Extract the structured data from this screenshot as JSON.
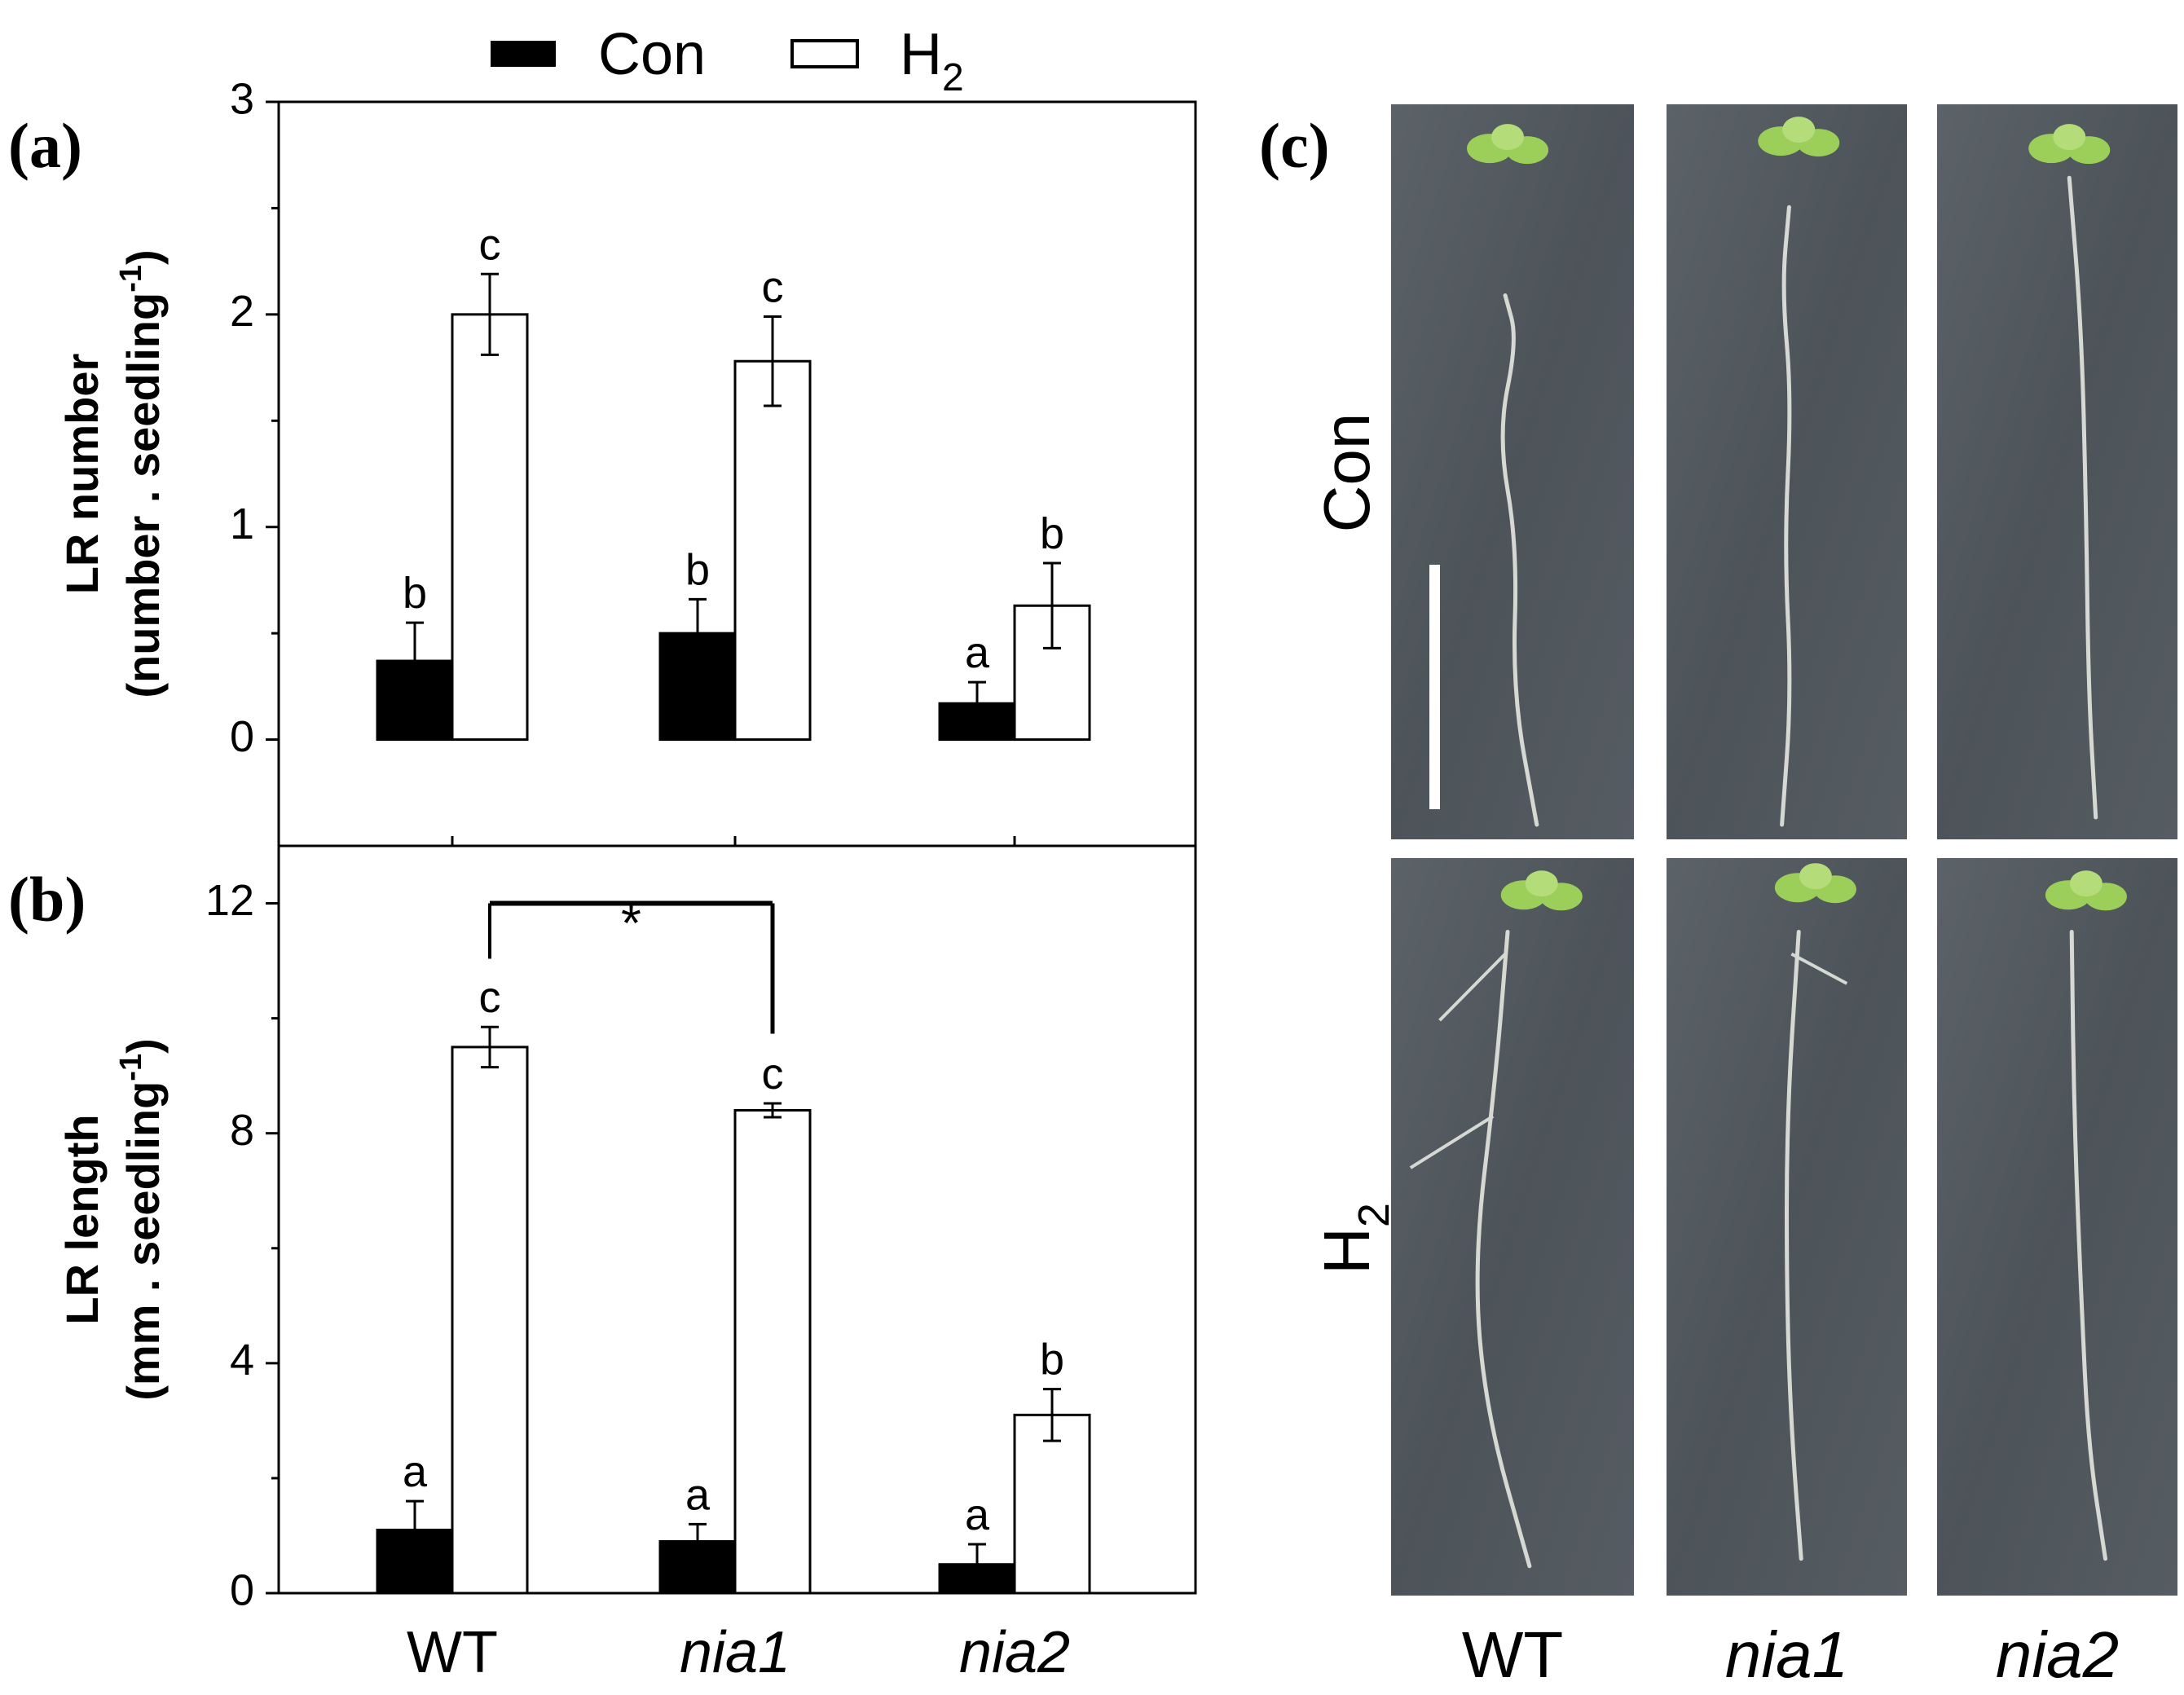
{
  "legend": {
    "entries": [
      {
        "label": "Con",
        "fill": "#000000"
      },
      {
        "label": "H",
        "sub": "2",
        "fill": "#ffffff"
      }
    ]
  },
  "panels": {
    "a": "(a)",
    "b": "(b)",
    "c": "(c)"
  },
  "chart_data": [
    {
      "panel": "a",
      "type": "bar",
      "categories": [
        "WT",
        "nia1",
        "nia2"
      ],
      "italic_categories": [
        "nia1",
        "nia2"
      ],
      "ylabel_line1": "LR number",
      "ylabel_line2": "(number . seedling",
      "ylabel_sup": "-1",
      "ylabel_close": ")",
      "ylim": [
        -0.5,
        3
      ],
      "yticks": [
        0,
        1,
        2,
        3
      ],
      "series": [
        {
          "name": "Con",
          "fill": "#000000",
          "values": [
            0.37,
            0.5,
            0.17
          ],
          "errors": [
            0.18,
            0.16,
            0.1
          ],
          "letters": [
            "b",
            "b",
            "a"
          ]
        },
        {
          "name": "H2",
          "fill": "#ffffff",
          "values": [
            2.0,
            1.78,
            0.63
          ],
          "errors": [
            0.19,
            0.21,
            0.2
          ],
          "letters": [
            "c",
            "c",
            "b"
          ]
        }
      ]
    },
    {
      "panel": "b",
      "type": "bar",
      "categories": [
        "WT",
        "nia1",
        "nia2"
      ],
      "italic_categories": [
        "nia1",
        "nia2"
      ],
      "ylabel_line1": "LR length",
      "ylabel_line2": "(mm . seedling",
      "ylabel_sup": "-1",
      "ylabel_close": ")",
      "ylim": [
        0,
        13
      ],
      "yticks": [
        0,
        4,
        8,
        12
      ],
      "series": [
        {
          "name": "Con",
          "fill": "#000000",
          "values": [
            1.1,
            0.9,
            0.5
          ],
          "errors": [
            0.5,
            0.3,
            0.35
          ],
          "letters": [
            "a",
            "a",
            "a"
          ]
        },
        {
          "name": "H2",
          "fill": "#ffffff",
          "values": [
            9.5,
            8.4,
            3.1
          ],
          "errors": [
            0.35,
            0.12,
            0.45
          ],
          "letters": [
            "c",
            "c",
            "b"
          ]
        }
      ],
      "significance": {
        "label": "*",
        "between": [
          "WT",
          "nia1"
        ],
        "series": "H2",
        "y": 12
      }
    }
  ],
  "photo_panel": {
    "row_labels": [
      {
        "text": "Con"
      },
      {
        "text": "H",
        "sub": "2"
      }
    ],
    "col_labels": [
      "WT",
      "nia1",
      "nia2"
    ],
    "italic_cols": [
      "nia1",
      "nia2"
    ],
    "background_color": "#50585d",
    "root_color": "#d6d8d2",
    "leaf_color": "#9ccf5a"
  }
}
